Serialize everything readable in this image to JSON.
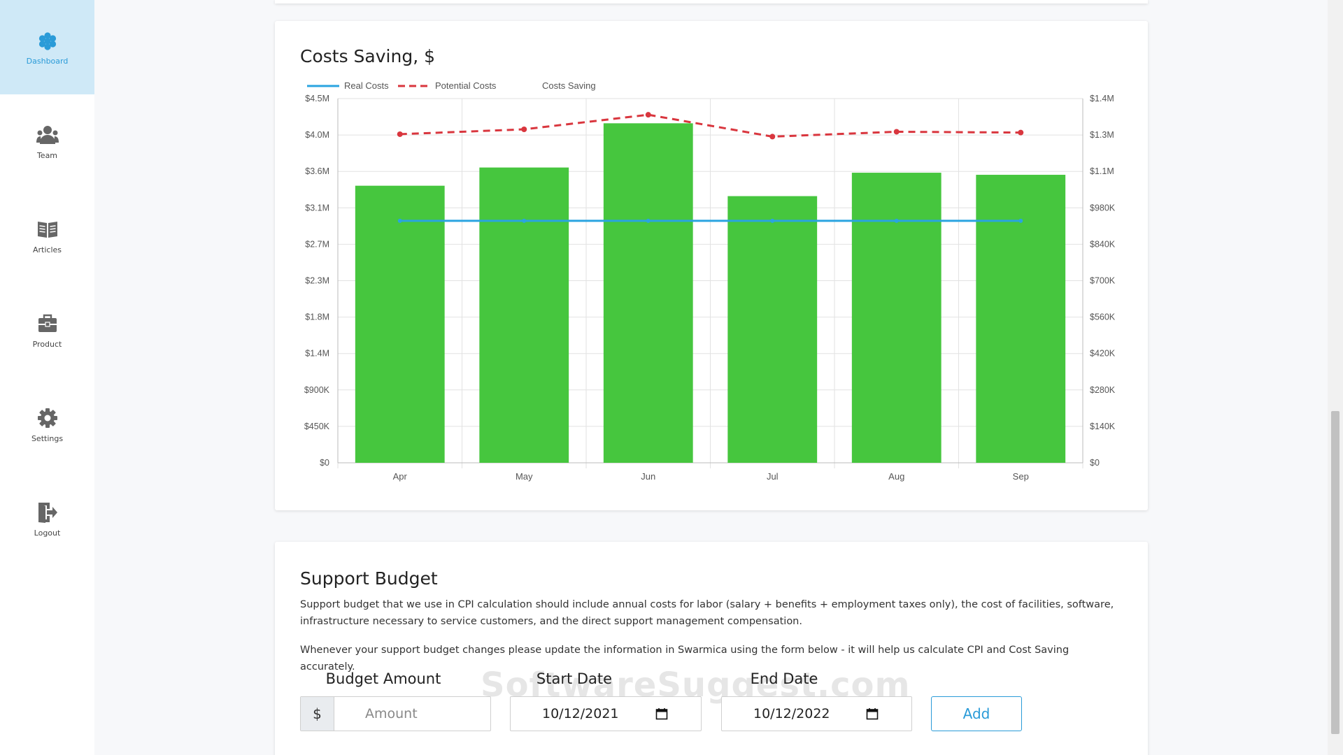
{
  "sidebar": {
    "items": [
      {
        "label": "Dashboard",
        "icon": "honeycomb-icon",
        "active": true
      },
      {
        "label": "Team",
        "icon": "team-icon",
        "active": false
      },
      {
        "label": "Articles",
        "icon": "book-icon",
        "active": false
      },
      {
        "label": "Product",
        "icon": "briefcase-icon",
        "active": false
      },
      {
        "label": "Settings",
        "icon": "gear-icon",
        "active": false
      },
      {
        "label": "Logout",
        "icon": "logout-icon",
        "active": false
      }
    ]
  },
  "costs_card": {
    "title": "Costs Saving, $"
  },
  "chart_data": {
    "type": "bar",
    "categories": [
      "Apr",
      "May",
      "Jun",
      "Jul",
      "Aug",
      "Sep"
    ],
    "legend": [
      "Real Costs",
      "Potential Costs",
      "Costs Saving"
    ],
    "legend_position": "top-left",
    "grid": true,
    "left_axis": {
      "ticks": [
        "$0",
        "$450K",
        "$900K",
        "$1.4M",
        "$1.8M",
        "$2.3M",
        "$2.7M",
        "$3.1M",
        "$3.6M",
        "$4.0M",
        "$4.5M"
      ],
      "ylim": [
        0,
        4500000
      ]
    },
    "right_axis": {
      "ticks": [
        "$0",
        "$140K",
        "$280K",
        "$420K",
        "$560K",
        "$700K",
        "$840K",
        "$980K",
        "$1.1M",
        "$1.3M",
        "$1.4M"
      ],
      "ylim": [
        0,
        1400000
      ]
    },
    "series": [
      {
        "name": "Real Costs",
        "type": "line",
        "axis": "left",
        "color": "#2aa4e0",
        "style": "solid",
        "values": [
          2990000,
          2990000,
          2990000,
          2990000,
          2990000,
          2990000
        ]
      },
      {
        "name": "Potential Costs",
        "type": "line",
        "axis": "left",
        "color": "#d9363e",
        "style": "dashed",
        "values": [
          4060000,
          4120000,
          4300000,
          4030000,
          4090000,
          4080000
        ]
      },
      {
        "name": "Costs Saving",
        "type": "bar",
        "axis": "right",
        "color": "#46c63e",
        "values": [
          1065000,
          1135000,
          1305000,
          1025000,
          1115000,
          1107000
        ]
      }
    ]
  },
  "budget_card": {
    "title": "Support Budget",
    "para1": "Support budget that we use in CPI calculation should include annual costs for labor (salary + benefits + employment taxes only), the cost of facilities, software, infrastructure necessary to service customers, and the direct support management compensation.",
    "para2": "Whenever your support budget changes please update the information in Swarmica using the form below - it will help us calculate CPI and Cost Saving accurately.",
    "budget_label": "Budget Amount",
    "currency_prefix": "$",
    "amount_placeholder": "Amount",
    "start_label": "Start Date",
    "start_value": "10/12/2021",
    "end_label": "End Date",
    "end_value": "10/12/2022",
    "add_label": "Add"
  },
  "watermark": "SoftwareSuggest.com",
  "colors": {
    "accent": "#2a9bd8",
    "sidebar_active_bg": "#cfe9f7",
    "bar": "#46c63e",
    "real_costs": "#2aa4e0",
    "potential_costs": "#d9363e"
  }
}
